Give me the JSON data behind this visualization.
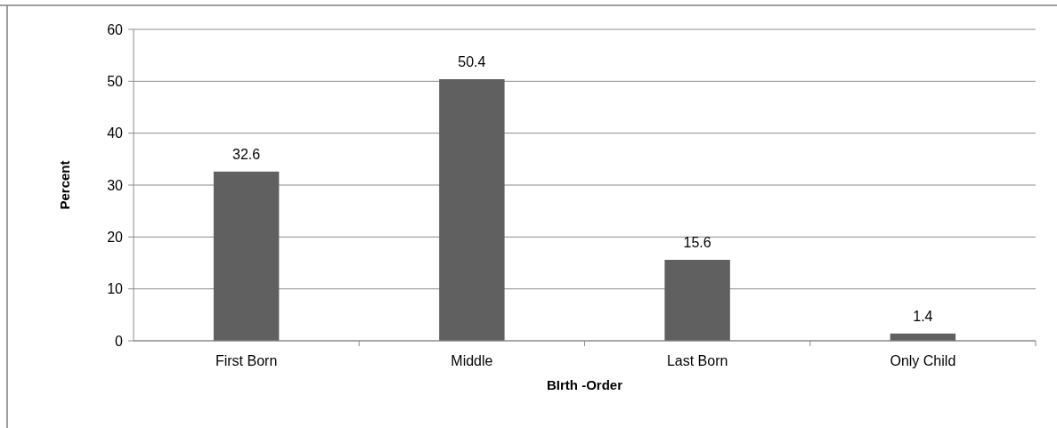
{
  "chart_data": {
    "type": "bar",
    "xlabel": "BIrth -Order",
    "ylabel": "Percent",
    "categories": [
      "First Born",
      "Middle",
      "Last Born",
      "Only Child"
    ],
    "values": [
      32.6,
      50.4,
      15.6,
      1.4
    ],
    "color": "#606060",
    "ylim": [
      0,
      60
    ],
    "yticks": [
      0,
      10,
      20,
      30,
      40,
      50,
      60
    ],
    "grid": "y",
    "data_labels": true
  }
}
